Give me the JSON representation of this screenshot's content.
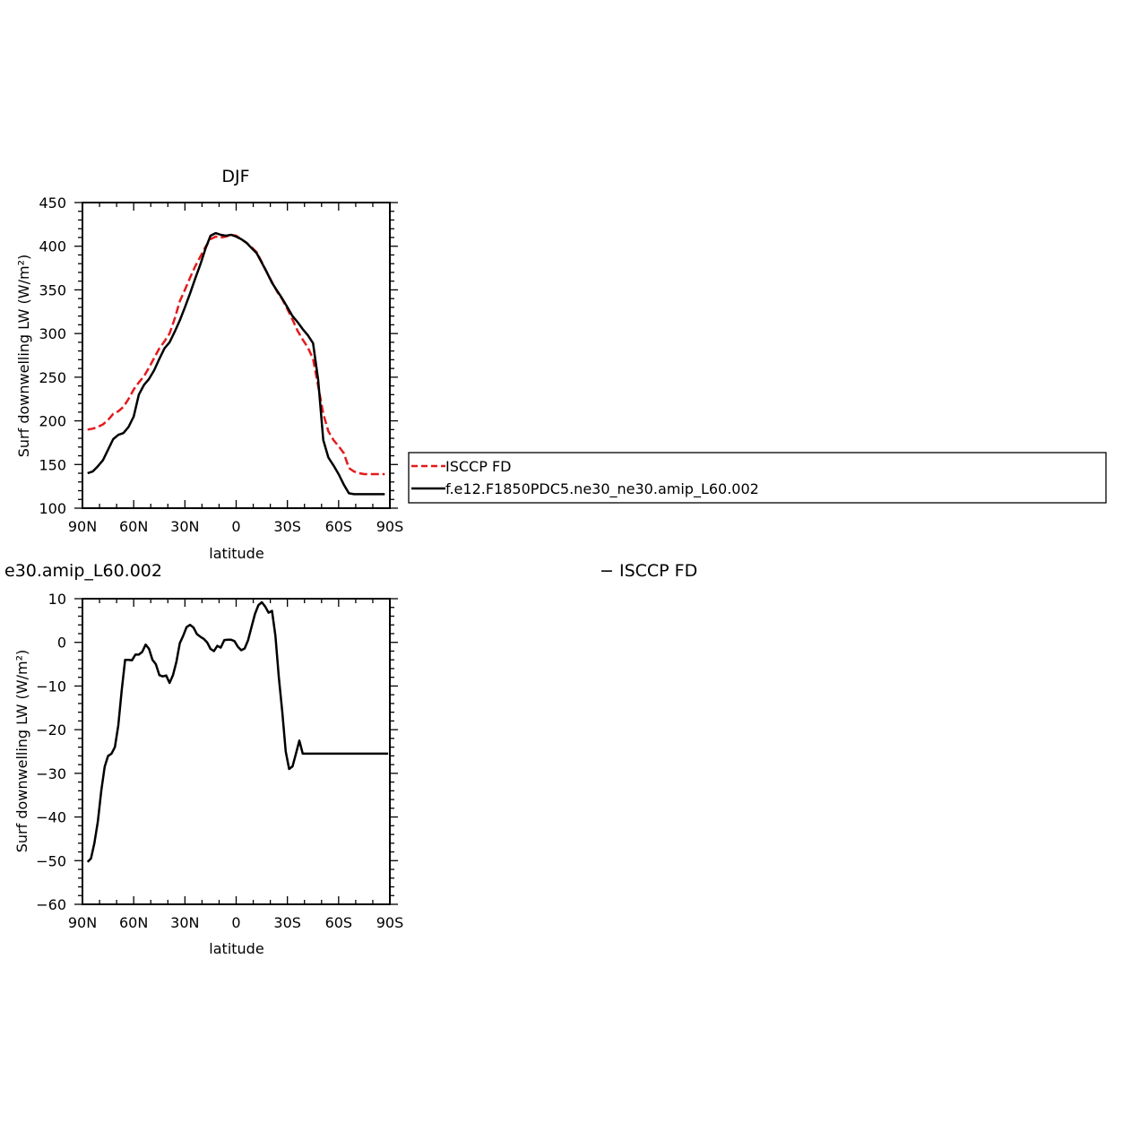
{
  "chart_data": [
    {
      "type": "line",
      "title": "DJF",
      "xlabel": "latitude",
      "ylabel": "Surf downwelling LW (W/m²)",
      "xlim": [
        90,
        -90
      ],
      "ylim": [
        100,
        450
      ],
      "xticks": [
        90,
        60,
        30,
        0,
        -30,
        -60,
        -90
      ],
      "xtick_labels": [
        "90N",
        "60N",
        "30N",
        "0",
        "30S",
        "60S",
        "90S"
      ],
      "yticks": [
        100,
        150,
        200,
        250,
        300,
        350,
        400,
        450
      ],
      "ytick_labels": [
        "100",
        "150",
        "200",
        "250",
        "300",
        "350",
        "400",
        "450"
      ],
      "legend": "right, outside plot",
      "series": [
        {
          "name": "ISCCP FD",
          "color": "#e31a1c",
          "style": "dashed",
          "x": [
            87,
            84,
            81,
            78,
            75,
            72,
            69,
            66,
            63,
            60,
            57,
            54,
            51,
            48,
            45,
            42,
            39,
            36,
            33,
            30,
            27,
            24,
            21,
            18,
            15,
            12,
            9,
            6,
            3,
            0,
            -3,
            -6,
            -9,
            -12,
            -15,
            -18,
            -21,
            -24,
            -27,
            -30,
            -33,
            -36,
            -39,
            -42,
            -45,
            -48,
            -51,
            -54,
            -57,
            -60,
            -63,
            -66,
            -69,
            -72,
            -75,
            -78,
            -81,
            -84,
            -87
          ],
          "y": [
            190,
            191,
            193,
            196,
            201,
            208,
            211,
            216,
            225,
            236,
            244,
            251,
            261,
            272,
            283,
            291,
            300,
            317,
            337,
            350,
            364,
            377,
            388,
            399,
            408,
            411,
            410,
            411,
            413,
            412,
            408,
            404,
            399,
            393,
            382,
            370,
            359,
            348,
            339,
            328,
            316,
            303,
            293,
            284,
            271,
            240,
            208,
            188,
            178,
            171,
            163,
            146,
            142,
            140,
            139,
            139,
            139,
            139,
            139
          ]
        },
        {
          "name": "f.e12.F1850PDC5.ne30_ne30.amip_L60.002",
          "color": "#000000",
          "style": "solid",
          "x": [
            87,
            84,
            81,
            78,
            75,
            72,
            69,
            66,
            63,
            60,
            57,
            54,
            51,
            48,
            45,
            42,
            39,
            36,
            33,
            30,
            27,
            24,
            21,
            18,
            15,
            12,
            9,
            6,
            3,
            0,
            -3,
            -6,
            -9,
            -12,
            -15,
            -18,
            -21,
            -24,
            -27,
            -30,
            -33,
            -36,
            -39,
            -42,
            -45,
            -48,
            -51,
            -54,
            -57,
            -60,
            -63,
            -66,
            -69,
            -72,
            -75,
            -78,
            -81,
            -84,
            -87
          ],
          "y": [
            140,
            142,
            148,
            155,
            167,
            179,
            184,
            186,
            193,
            205,
            230,
            241,
            248,
            258,
            271,
            283,
            290,
            302,
            315,
            330,
            346,
            363,
            379,
            397,
            412,
            415,
            413,
            412,
            413,
            411,
            408,
            404,
            398,
            392,
            381,
            370,
            358,
            349,
            340,
            330,
            320,
            313,
            305,
            298,
            289,
            247,
            178,
            158,
            149,
            139,
            127,
            117,
            116,
            116,
            116,
            116,
            116,
            116,
            116
          ]
        }
      ]
    },
    {
      "type": "line",
      "title": "e30.amip_L60.002",
      "xlabel": "latitude",
      "ylabel": "Surf downwelling LW (W/m²)",
      "xlim": [
        90,
        -90
      ],
      "ylim": [
        -60,
        10
      ],
      "xticks": [
        90,
        60,
        30,
        0,
        -30,
        -60,
        -90
      ],
      "xtick_labels": [
        "90N",
        "60N",
        "30N",
        "0",
        "30S",
        "60S",
        "90S"
      ],
      "yticks": [
        -60,
        -50,
        -40,
        -30,
        -20,
        -10,
        0,
        10
      ],
      "ytick_labels": [
        "−60",
        "−50",
        "−40",
        "−30",
        "−20",
        "−10",
        "0",
        "10"
      ],
      "series": [
        {
          "name": "ISCCP FD",
          "color": "#000000",
          "style": "solid",
          "x": [
            87,
            85,
            83,
            81,
            79,
            77,
            75,
            73,
            71,
            69,
            67,
            65,
            63,
            61,
            59,
            57,
            55,
            53,
            51,
            49,
            47,
            45,
            43,
            41,
            39,
            37,
            35,
            33,
            31,
            29,
            27,
            25,
            23,
            21,
            19,
            17,
            15,
            13,
            11,
            9,
            7,
            5,
            3,
            1,
            -1,
            -3,
            -5,
            -7,
            -9,
            -11,
            -13,
            -15,
            -17,
            -19,
            -21,
            -23,
            -25,
            -27,
            -29,
            -31,
            -33,
            -35,
            -37,
            -39,
            -41,
            -43,
            -45,
            -47,
            -49,
            -51,
            -53,
            -55,
            -57,
            -59,
            -61,
            -63,
            -65,
            -67,
            -69,
            -71,
            -73,
            -75,
            -77,
            -79,
            -81,
            -83,
            -85,
            -87,
            -89
          ],
          "y": [
            -50.3,
            -49.5,
            -46,
            -41,
            -34,
            -28.5,
            -26,
            -25.5,
            -24,
            -19,
            -11,
            -4,
            -4,
            -4.1,
            -2.8,
            -2.8,
            -2.2,
            -0.5,
            -1.5,
            -4,
            -5,
            -7.5,
            -7.8,
            -7.6,
            -9.3,
            -7.5,
            -4.5,
            -0.2,
            1.5,
            3.5,
            4,
            3.4,
            1.9,
            1.3,
            0.8,
            0,
            -1.5,
            -2,
            -0.8,
            -1.2,
            0.5,
            0.6,
            0.6,
            0.3,
            -1,
            -1.8,
            -1.4,
            0.5,
            3.5,
            6.5,
            8.5,
            9.2,
            8.2,
            6.8,
            7.2,
            1.5,
            -8,
            -16,
            -25,
            -29,
            -28.4,
            -25.5,
            -22.5,
            -25.5,
            -25.5,
            -25.5,
            -25.5,
            -25.5,
            -25.5,
            -25.5,
            -25.5,
            -25.5,
            -25.5,
            -25.5,
            -25.5,
            -25.5,
            -25.5,
            -25.5,
            -25.5,
            -25.5,
            -25.5,
            -25.5,
            -25.5,
            -25.5,
            -25.5,
            -25.5,
            -25.5,
            -25.5,
            -25.5
          ]
        }
      ]
    }
  ],
  "legend": {
    "entries": [
      "ISCCP FD",
      "f.e12.F1850PDC5.ne30_ne30.amip_L60.002"
    ]
  },
  "annotations": {
    "second_panel_legend": "− ISCCP FD"
  }
}
